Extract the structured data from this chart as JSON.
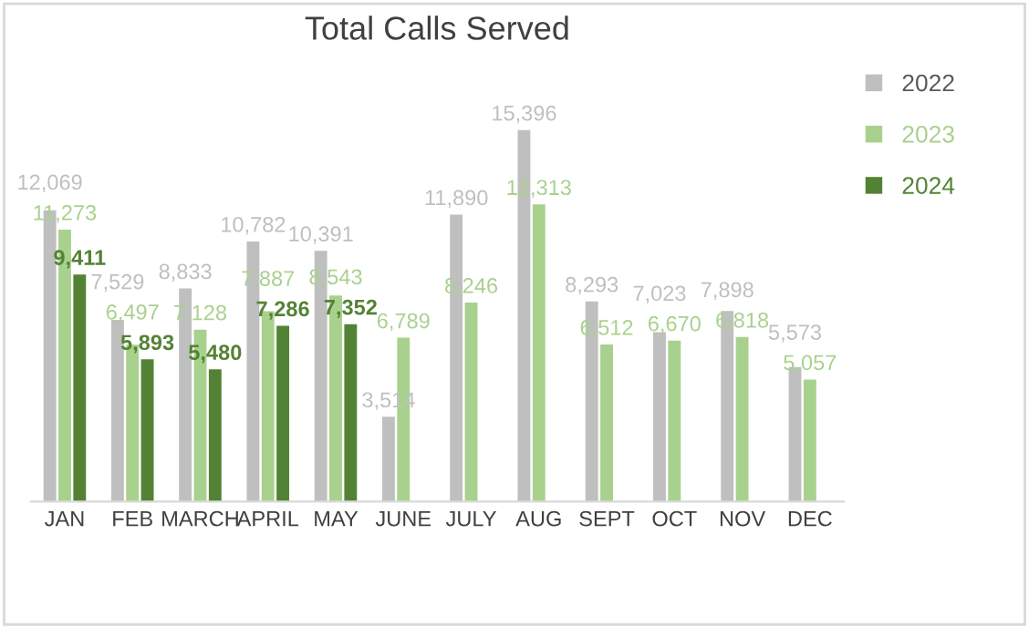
{
  "chart_data": {
    "type": "bar",
    "title": "Total Calls Served",
    "categories": [
      "JAN",
      "FEB",
      "MARCH",
      "APRIL",
      "MAY",
      "JUNE",
      "JULY",
      "AUG",
      "SEPT",
      "OCT",
      "NOV",
      "DEC"
    ],
    "series": [
      {
        "name": "2022",
        "color": "#bfbfbf",
        "values": [
          12069,
          7529,
          8833,
          10782,
          10391,
          3514,
          11890,
          15396,
          8293,
          7023,
          7898,
          5573
        ],
        "value_labels": [
          "12,069",
          "7,529",
          "8,833",
          "10,782",
          "10,391",
          "3,514",
          "11,890",
          "15,396",
          "8,293",
          "7,023",
          "7,898",
          "5,573"
        ]
      },
      {
        "name": "2023",
        "color": "#a9d18e",
        "values": [
          11273,
          6497,
          7128,
          7887,
          8543,
          6789,
          8246,
          12313,
          6512,
          6670,
          6818,
          5057
        ],
        "value_labels": [
          "11,273",
          "6,497",
          "7,128",
          "7,887",
          "8,543",
          "6,789",
          "8,246",
          "12,313",
          "6,512",
          "6,670",
          "6,818",
          "5,057"
        ]
      },
      {
        "name": "2024",
        "color": "#548235",
        "values": [
          9411,
          5893,
          5480,
          7286,
          7352,
          null,
          null,
          null,
          null,
          null,
          null,
          null
        ],
        "value_labels": [
          "9,411",
          "5,893",
          "5,480",
          "7,286",
          "7,352",
          null,
          null,
          null,
          null,
          null,
          null,
          null
        ]
      }
    ],
    "legend": "top right"
  }
}
